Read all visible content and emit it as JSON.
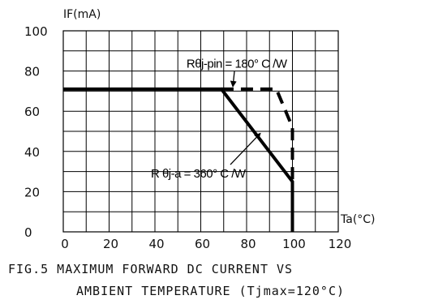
{
  "chart_data": {
    "type": "line",
    "ylabel": "IF(mA)",
    "xlabel": "Ta(°C)",
    "xlim": [
      0,
      120
    ],
    "ylim": [
      0,
      100
    ],
    "x_ticks": [
      "0",
      "20",
      "40",
      "60",
      "80",
      "100",
      "120"
    ],
    "y_ticks": [
      "0",
      "20",
      "40",
      "60",
      "80",
      "100"
    ],
    "x_tick_values": [
      0,
      20,
      40,
      60,
      80,
      100,
      120
    ],
    "y_tick_values": [
      0,
      20,
      40,
      60,
      80,
      100
    ],
    "grid": true,
    "series": [
      {
        "style": "solid",
        "points": [
          [
            0,
            71
          ],
          [
            69,
            71
          ],
          [
            100,
            25
          ],
          [
            100,
            0
          ]
        ]
      },
      {
        "style": "dashed",
        "points": [
          [
            69,
            71
          ],
          [
            93,
            71
          ],
          [
            100,
            52
          ],
          [
            100,
            25
          ]
        ]
      }
    ],
    "annotations": [
      {
        "text": "Rθj-pin = 180° C /W",
        "x": 75,
        "y": 80,
        "arrow_to": [
          74,
          71
        ]
      },
      {
        "text": "R θj-a = 360° C /W",
        "x": 63,
        "y": 27,
        "arrow_to": [
          86,
          49
        ]
      }
    ],
    "caption_line1": "FIG.5 MAXIMUM FORWARD DC CURRENT VS",
    "caption_line2": "AMBIENT TEMPERATURE (Tjmax=120°C)"
  }
}
